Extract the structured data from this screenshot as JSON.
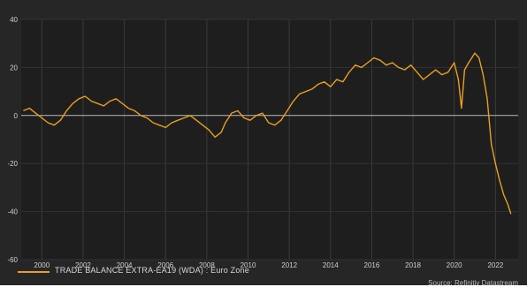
{
  "chart_data": {
    "type": "line",
    "title": "",
    "xlabel": "",
    "ylabel": "",
    "xlim": [
      1999.0,
      2023.1
    ],
    "ylim": [
      -60,
      40
    ],
    "x_ticks": [
      2000,
      2002,
      2004,
      2006,
      2008,
      2010,
      2012,
      2014,
      2016,
      2018,
      2020,
      2022
    ],
    "y_ticks": [
      40,
      20,
      0,
      -20,
      -40,
      -60
    ],
    "zero_line": true,
    "grid": true,
    "legend": {
      "position": "bottom-left",
      "label": "TRADE BALANCE EXTRA-EA19 (WDA) : Euro Zone"
    },
    "source": "Source: Refinitiv Datastream",
    "colors": {
      "series": "#e8a020",
      "background": "#262626",
      "plot_background": "#1e1e1e",
      "zero_line": "#bcbcbc",
      "tick_text": "#cfcfcf"
    },
    "series": [
      {
        "name": "TRADE BALANCE EXTRA-EA19 (WDA) : Euro Zone",
        "x": [
          1999.1,
          1999.4,
          1999.7,
          2000.0,
          2000.3,
          2000.6,
          2000.9,
          2001.2,
          2001.5,
          2001.8,
          2002.1,
          2002.4,
          2002.7,
          2003.0,
          2003.3,
          2003.6,
          2003.9,
          2004.2,
          2004.5,
          2004.8,
          2005.1,
          2005.4,
          2005.7,
          2006.0,
          2006.3,
          2006.6,
          2006.9,
          2007.2,
          2007.5,
          2007.8,
          2008.1,
          2008.4,
          2008.7,
          2008.9,
          2009.2,
          2009.5,
          2009.8,
          2010.1,
          2010.4,
          2010.7,
          2011.0,
          2011.3,
          2011.6,
          2011.9,
          2012.2,
          2012.5,
          2012.8,
          2013.1,
          2013.4,
          2013.7,
          2014.0,
          2014.3,
          2014.6,
          2014.9,
          2015.2,
          2015.5,
          2015.8,
          2016.1,
          2016.4,
          2016.7,
          2017.0,
          2017.3,
          2017.6,
          2017.9,
          2018.2,
          2018.5,
          2018.8,
          2019.1,
          2019.4,
          2019.7,
          2020.0,
          2020.2,
          2020.35,
          2020.5,
          2020.7,
          2021.0,
          2021.2,
          2021.4,
          2021.6,
          2021.8,
          2022.0,
          2022.2,
          2022.4,
          2022.6,
          2022.75
        ],
        "values": [
          2,
          3,
          1,
          -1,
          -3,
          -4,
          -2,
          2,
          5,
          7,
          8,
          6,
          5,
          4,
          6,
          7,
          5,
          3,
          2,
          0,
          -1,
          -3,
          -4,
          -5,
          -3,
          -2,
          -1,
          0,
          -2,
          -4,
          -6,
          -9,
          -7,
          -3,
          1,
          2,
          -1,
          -2,
          0,
          1,
          -3,
          -4,
          -2,
          2,
          6,
          9,
          10,
          11,
          13,
          14,
          12,
          15,
          14,
          18,
          21,
          20,
          22,
          24,
          23,
          21,
          22,
          20,
          19,
          21,
          18,
          15,
          17,
          19,
          17,
          18,
          22,
          15,
          3,
          19,
          22,
          26,
          24,
          17,
          7,
          -12,
          -20,
          -27,
          -33,
          -37,
          -41
        ]
      }
    ]
  }
}
